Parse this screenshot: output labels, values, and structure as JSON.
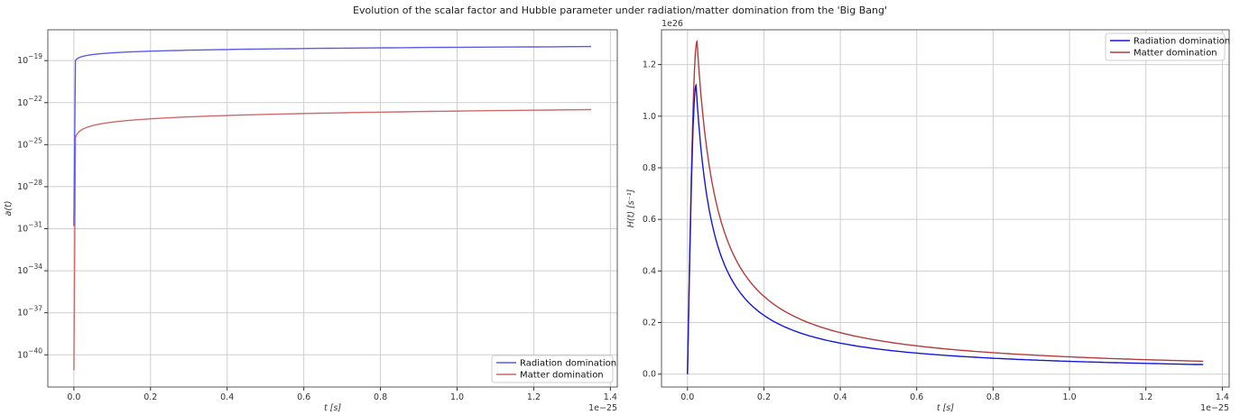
{
  "title": "Evolution of the scalar factor and Hubble parameter under radiation/matter domination from the 'Big Bang'",
  "colors": {
    "radiation_left": "#5b5bea",
    "matter_left": "#cd6a6a",
    "radiation_right": "#1515dd",
    "matter_right": "#b53a3a",
    "grid": "#cfcfcf"
  },
  "chart_data": [
    {
      "type": "line",
      "xlabel": "t [s]",
      "ylabel": "a(t)",
      "x_offset_label": "1e−25",
      "y_scale": "log",
      "xlim": [
        -0.068,
        1.418
      ],
      "ylim_exp": [
        -42.3,
        -16.8
      ],
      "grid": true,
      "legend_position": "lower-right",
      "xticks": [
        "0.0",
        "0.2",
        "0.4",
        "0.6",
        "0.8",
        "1.0",
        "1.2",
        "1.4"
      ],
      "yticks": [
        "10−19",
        "10−22",
        "10−25",
        "10−28",
        "10−31",
        "10−34",
        "10−37",
        "10−40"
      ],
      "series": [
        {
          "name": "Radiation domination",
          "curve_end_exp": -18.0,
          "curve_start_exp": -19.0,
          "start_exp": -30.8
        },
        {
          "name": "Matter domination",
          "curve_end_exp": -22.5,
          "curve_start_exp": -24.5,
          "start_exp": -41.1
        }
      ],
      "x_end": 1.35
    },
    {
      "type": "line",
      "xlabel": "t [s]",
      "ylabel": "H(t) [s⁻¹]",
      "x_offset_label": "1e−25",
      "y_offset_label": "1e26",
      "xlim": [
        -0.068,
        1.418
      ],
      "ylim": [
        -0.05,
        1.335
      ],
      "grid": true,
      "legend_position": "upper-right",
      "xticks": [
        "0.0",
        "0.2",
        "0.4",
        "0.6",
        "0.8",
        "1.0",
        "1.2",
        "1.4"
      ],
      "yticks": [
        "0.0",
        "0.2",
        "0.4",
        "0.6",
        "0.8",
        "1.0",
        "1.2"
      ],
      "series": [
        {
          "name": "Radiation domination",
          "peak_x": 0.0225,
          "peak_y": 1.12,
          "end_y": 0.037
        },
        {
          "name": "Matter domination",
          "peak_x": 0.025,
          "peak_y": 1.29,
          "end_y": 0.05
        }
      ],
      "x_end": 1.35
    }
  ]
}
